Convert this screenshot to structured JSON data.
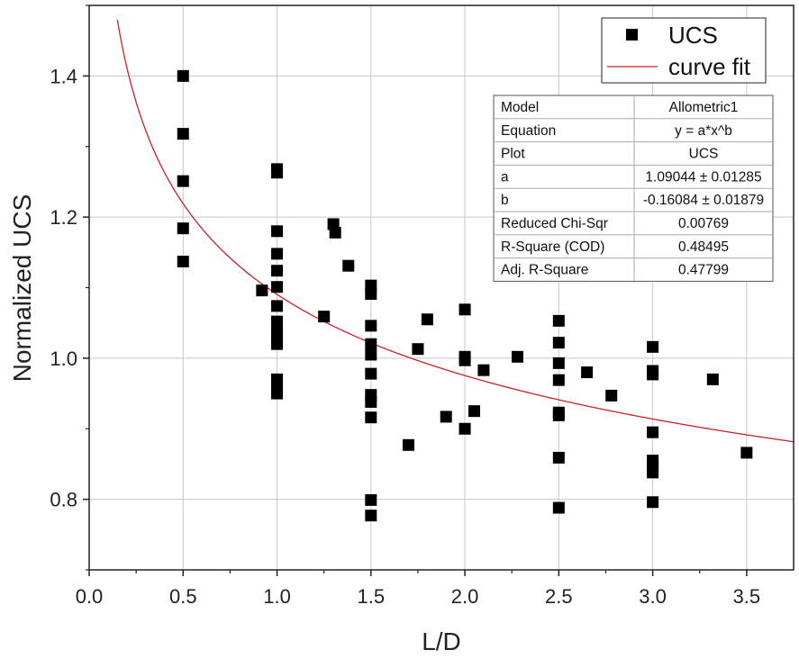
{
  "chart_data": {
    "type": "scatter",
    "xlabel": "L/D",
    "ylabel": "Normalized UCS",
    "xlim": [
      0.0,
      3.75
    ],
    "ylim": [
      0.7,
      1.5
    ],
    "x_ticks": [
      0.0,
      0.5,
      1.0,
      1.5,
      2.0,
      2.5,
      3.0,
      3.5
    ],
    "x_tick_labels": [
      "0.0",
      "0.5",
      "1.0",
      "1.5",
      "2.0",
      "2.5",
      "3.0",
      "3.5"
    ],
    "y_ticks": [
      0.8,
      1.0,
      1.2,
      1.4
    ],
    "y_tick_labels": [
      "0.8",
      "1.0",
      "1.2",
      "1.4"
    ],
    "grid": true,
    "legend_position": "top-right",
    "series": [
      {
        "name": "UCS",
        "kind": "points",
        "marker": "square",
        "color": "#000000",
        "points": [
          [
            0.5,
            1.4
          ],
          [
            0.5,
            1.318
          ],
          [
            0.5,
            1.251
          ],
          [
            0.5,
            1.184
          ],
          [
            0.5,
            1.137
          ],
          [
            0.92,
            1.096
          ],
          [
            1.0,
            1.268
          ],
          [
            1.0,
            1.263
          ],
          [
            1.0,
            1.18
          ],
          [
            1.0,
            1.148
          ],
          [
            1.0,
            1.124
          ],
          [
            1.0,
            1.101
          ],
          [
            1.0,
            1.074
          ],
          [
            1.0,
            1.052
          ],
          [
            1.0,
            1.04
          ],
          [
            1.0,
            1.029
          ],
          [
            1.0,
            1.02
          ],
          [
            1.0,
            0.97
          ],
          [
            1.0,
            0.962
          ],
          [
            1.0,
            0.95
          ],
          [
            1.25,
            1.059
          ],
          [
            1.3,
            1.19
          ],
          [
            1.31,
            1.178
          ],
          [
            1.38,
            1.131
          ],
          [
            1.5,
            1.103
          ],
          [
            1.5,
            1.091
          ],
          [
            1.5,
            1.046
          ],
          [
            1.5,
            1.02
          ],
          [
            1.5,
            1.005
          ],
          [
            1.5,
            0.978
          ],
          [
            1.5,
            0.948
          ],
          [
            1.5,
            0.938
          ],
          [
            1.5,
            0.916
          ],
          [
            1.5,
            0.799
          ],
          [
            1.5,
            0.777
          ],
          [
            1.7,
            0.877
          ],
          [
            1.75,
            1.013
          ],
          [
            1.8,
            1.055
          ],
          [
            1.9,
            0.917
          ],
          [
            2.0,
            1.069
          ],
          [
            2.0,
            1.002
          ],
          [
            2.0,
            0.997
          ],
          [
            2.0,
            0.9
          ],
          [
            2.05,
            0.925
          ],
          [
            2.1,
            0.983
          ],
          [
            2.28,
            1.002
          ],
          [
            2.5,
            1.053
          ],
          [
            2.5,
            1.022
          ],
          [
            2.5,
            0.993
          ],
          [
            2.5,
            0.969
          ],
          [
            2.5,
            0.923
          ],
          [
            2.5,
            0.919
          ],
          [
            2.5,
            0.859
          ],
          [
            2.5,
            0.788
          ],
          [
            2.65,
            0.98
          ],
          [
            2.78,
            0.947
          ],
          [
            3.0,
            1.016
          ],
          [
            3.0,
            0.982
          ],
          [
            3.0,
            0.977
          ],
          [
            3.0,
            0.895
          ],
          [
            3.0,
            0.855
          ],
          [
            3.0,
            0.848
          ],
          [
            3.0,
            0.838
          ],
          [
            3.0,
            0.796
          ],
          [
            3.32,
            0.97
          ],
          [
            3.5,
            0.866
          ]
        ]
      },
      {
        "name": "curve fit",
        "kind": "curve",
        "color": "#cc2222",
        "model": "allometric",
        "a": 1.09044,
        "b": -0.16084,
        "x_start": 0.15,
        "x_end": 3.75
      }
    ],
    "fit_table": {
      "rows": [
        [
          "Model",
          "Allometric1"
        ],
        [
          "Equation",
          "y = a*x^b"
        ],
        [
          "Plot",
          "UCS"
        ],
        [
          "a",
          "1.09044 ± 0.01285"
        ],
        [
          "b",
          "-0.16084 ± 0.01879"
        ],
        [
          "Reduced Chi-Sqr",
          "0.00769"
        ],
        [
          "R-Square (COD)",
          "0.48495"
        ],
        [
          "Adj. R-Square",
          "0.47799"
        ]
      ]
    }
  }
}
